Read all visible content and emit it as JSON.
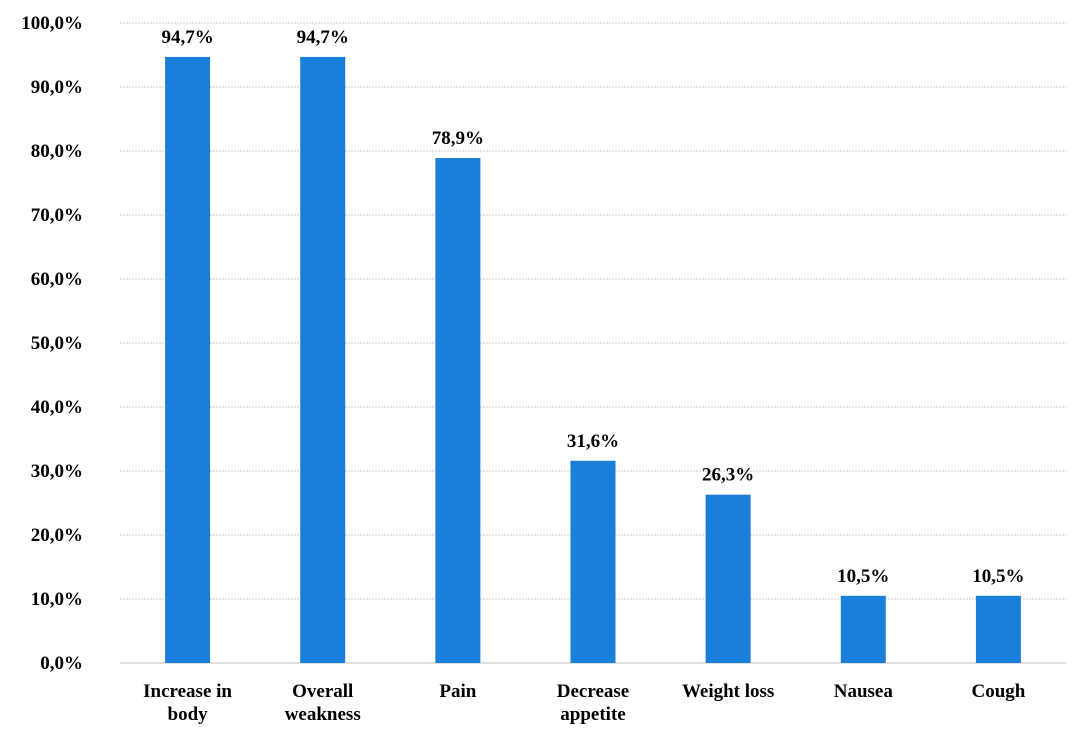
{
  "chart_data": {
    "type": "bar",
    "categories": [
      [
        "Increase in",
        "body"
      ],
      [
        "Overall",
        "weakness"
      ],
      [
        "Pain"
      ],
      [
        "Decrease",
        "appetite"
      ],
      [
        "Weight loss"
      ],
      [
        "Nausea"
      ],
      [
        "Cough"
      ]
    ],
    "values": [
      94.7,
      94.7,
      78.9,
      31.6,
      26.3,
      10.5,
      10.5
    ],
    "data_labels": [
      "94,7%",
      "94,7%",
      "78,9%",
      "31,6%",
      "26,3%",
      "10,5%",
      "10,5%"
    ],
    "y_ticks": [
      "0,0%",
      "10,0%",
      "20,0%",
      "30,0%",
      "40,0%",
      "50,0%",
      "60,0%",
      "70,0%",
      "80,0%",
      "90,0%",
      "100,0%"
    ],
    "ylim": [
      0,
      100
    ],
    "grid": true,
    "title": "",
    "xlabel": "",
    "ylabel": "",
    "bar_color": "#1a7fdb"
  }
}
